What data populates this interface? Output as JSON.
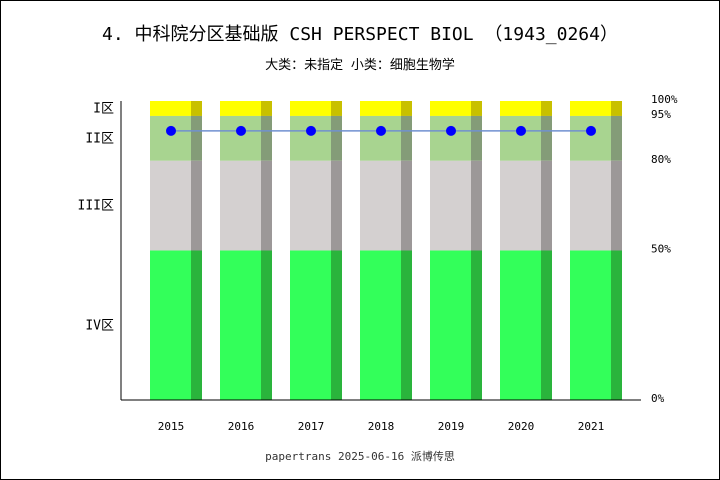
{
  "chart_data": {
    "type": "bar",
    "title": "4. 中科院分区基础版 CSH PERSPECT BIOL （1943_0264）",
    "subtitle": "大类：未指定 小类：细胞生物学",
    "footer": "papertrans 2025-06-16 派博传思",
    "categories": [
      "2015",
      "2016",
      "2017",
      "2018",
      "2019",
      "2020",
      "2021"
    ],
    "zones": [
      {
        "label": "I区",
        "from": 95,
        "to": 100,
        "color": "#ffff00",
        "shade": "#c8c000"
      },
      {
        "label": "II区",
        "from": 80,
        "to": 95,
        "color": "#a8d490",
        "shade": "#849c78"
      },
      {
        "label": "III区",
        "from": 50,
        "to": 80,
        "color": "#d4d0d0",
        "shade": "#9c9898"
      },
      {
        "label": "IV区",
        "from": 0,
        "to": 50,
        "color": "#33ff5a",
        "shade": "#2ab43c"
      }
    ],
    "percent_ticks": [
      "100%",
      "95%",
      "80%",
      "50%",
      "0%"
    ],
    "percent_tick_values": [
      100,
      95,
      80,
      50,
      0
    ],
    "series": [
      {
        "values": [
          90,
          90,
          90,
          90,
          90,
          90,
          90
        ],
        "color": "#0000ff",
        "line_color": "#7090d0"
      }
    ],
    "ylim": [
      0,
      100
    ]
  }
}
